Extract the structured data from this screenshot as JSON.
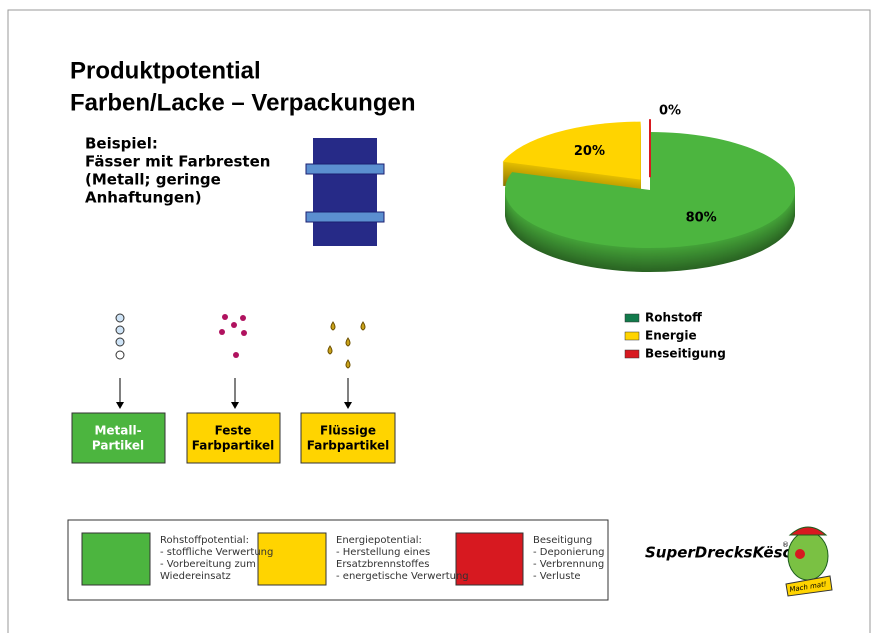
{
  "header": {
    "title_lines": [
      "Produktpotential",
      "Farben/Lacke – Verpackungen"
    ]
  },
  "example": {
    "lines": [
      "Beispiel:",
      "Fässer mit Farbresten",
      "(Metall; geringe",
      "Anhaftungen)"
    ]
  },
  "chart_data": {
    "type": "pie",
    "categories": [
      "Rohstoff",
      "Energie",
      "Beseitigung"
    ],
    "values": [
      80,
      20,
      0
    ],
    "value_labels": [
      "80%",
      "20%",
      "0%"
    ],
    "colors": [
      "#4cb53f",
      "#ffd400",
      "#d71920"
    ],
    "legend": "bottom"
  },
  "particles": [
    {
      "lines": [
        "Metall-",
        "Partikel"
      ]
    },
    {
      "lines": [
        "Feste",
        "Farbpartikel"
      ]
    },
    {
      "lines": [
        "Flüssige",
        "Farbpartikel"
      ]
    }
  ],
  "potential_legend": [
    {
      "lines": [
        "Rohstoffpotential:",
        "- stoffliche Verwertung",
        "- Vorbereitung zum",
        "  Wiedereinsatz"
      ]
    },
    {
      "lines": [
        "Energiepotential:",
        "- Herstellung eines",
        "  Ersatzbrennstoffes",
        "- energetische Verwertung"
      ]
    },
    {
      "lines": [
        "Beseitigung",
        "- Deponierung",
        "- Verbrennung",
        "- Verluste"
      ]
    }
  ],
  "logo": {
    "name": "SuperDrecksKëscht",
    "mark": "®",
    "tag": "Mach mat!"
  }
}
